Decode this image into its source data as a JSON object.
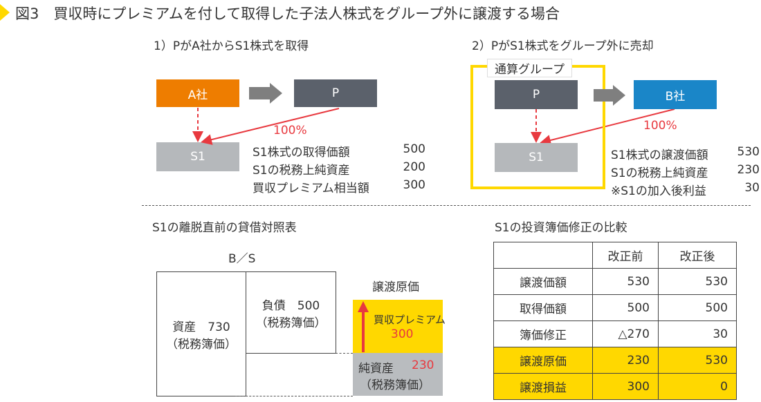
{
  "title": "図3　買収時にプレミアムを付して取得した子法人株式をグループ外に譲渡する場合",
  "colors": {
    "accent": "#ffd800",
    "a_company": "#ee7d00",
    "p": "#5b616b",
    "s1": "#b5b8bb",
    "b_company": "#1a86c8",
    "red": "#e8393f"
  },
  "case1": {
    "heading": "1）PがA社からS1株式を取得",
    "a": "A社",
    "p": "P",
    "s1": "S1",
    "pct": "100%",
    "rows": [
      {
        "label": "S1株式の取得価額",
        "value": "500"
      },
      {
        "label": "S1の税務上純資産",
        "value": "200"
      },
      {
        "label": "買収プレミアム相当額",
        "value": "300"
      }
    ]
  },
  "case2": {
    "heading": "2）PがS1株式をグループ外に売却",
    "group": "通算グループ",
    "p": "P",
    "s1": "S1",
    "b": "B社",
    "pct": "100%",
    "rows": [
      {
        "label": "S1株式の譲渡価額",
        "value": "530"
      },
      {
        "label": "S1の税務上純資産",
        "value": "230"
      },
      {
        "label": "※S1の加入後利益",
        "value": "30"
      }
    ]
  },
  "bs": {
    "heading": "S1の離脱直前の貸借対照表",
    "label": "B／S",
    "asset": "資産　730",
    "asset_sub": "（税務簿価）",
    "liab": "負債　500",
    "liab_sub": "（税務簿価）",
    "cost_label": "譲渡原価",
    "premium": "買収プレミアム",
    "premium_value": "300",
    "net": "純資産",
    "net_value": "230",
    "net_sub": "（税務簿価）"
  },
  "table": {
    "heading": "S1の投資簿価修正の比較",
    "headers": [
      "",
      "改正前",
      "改正後"
    ],
    "rows": [
      [
        "譲渡価額",
        "530",
        "530"
      ],
      [
        "取得価額",
        "500",
        "500"
      ],
      [
        "簿価修正",
        "△270",
        "30"
      ],
      [
        "譲渡原価",
        "230",
        "530"
      ],
      [
        "譲渡損益",
        "300",
        "0"
      ]
    ]
  }
}
